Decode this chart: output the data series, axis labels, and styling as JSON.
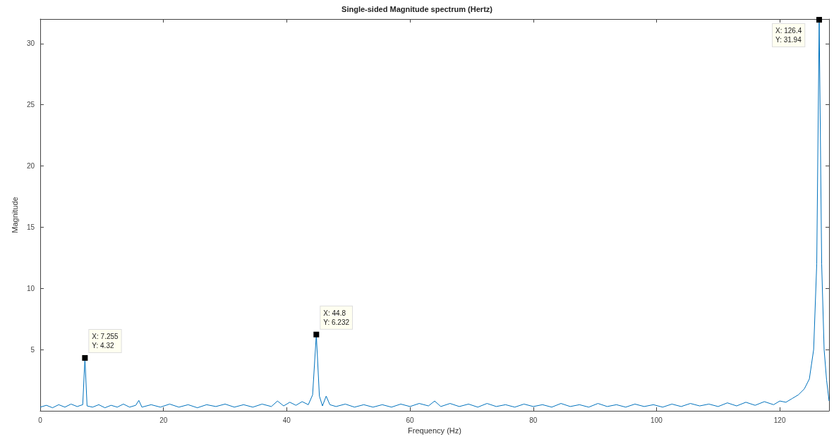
{
  "chart_data": {
    "type": "line",
    "title": "Single-sided Magnitude spectrum (Hertz)",
    "xlabel": "Frequency (Hz)",
    "ylabel": "Magnitude",
    "x": [
      0,
      1,
      2,
      3,
      4,
      5,
      6,
      6.9,
      7.255,
      7.6,
      8.5,
      9.5,
      10.5,
      11.5,
      12.5,
      13.5,
      14.5,
      15.5,
      16,
      16.5,
      18,
      19.5,
      21,
      22.5,
      24,
      25.5,
      27,
      28.5,
      30,
      31.5,
      33,
      34.5,
      36,
      37.5,
      38.5,
      39.5,
      40.5,
      41.5,
      42.5,
      43.5,
      44.2,
      44.8,
      45.3,
      45.8,
      46.4,
      47,
      48,
      49.5,
      51,
      52.5,
      54,
      55.5,
      57,
      58.5,
      60,
      61.5,
      63,
      64,
      65,
      66.5,
      68,
      69.5,
      71,
      72.5,
      74,
      75.5,
      77,
      78.5,
      80,
      81.5,
      83,
      84.5,
      86,
      87.5,
      89,
      90.5,
      92,
      93.5,
      95,
      96.5,
      98,
      99.5,
      101,
      102.5,
      104,
      105.5,
      107,
      108.5,
      110,
      111.5,
      113,
      114.5,
      116,
      117.5,
      119,
      120,
      121,
      122,
      123,
      124,
      124.8,
      125.5,
      126,
      126.4,
      126.8,
      127.2,
      127.6,
      128
    ],
    "series": [
      {
        "color": "#0072bd",
        "values": [
          0.3,
          0.45,
          0.25,
          0.5,
          0.3,
          0.55,
          0.35,
          0.5,
          4.32,
          0.4,
          0.3,
          0.5,
          0.25,
          0.45,
          0.3,
          0.55,
          0.3,
          0.45,
          0.85,
          0.3,
          0.5,
          0.3,
          0.55,
          0.3,
          0.5,
          0.25,
          0.5,
          0.35,
          0.55,
          0.3,
          0.5,
          0.3,
          0.55,
          0.35,
          0.8,
          0.4,
          0.7,
          0.45,
          0.75,
          0.5,
          1.3,
          6.232,
          1.2,
          0.4,
          1.2,
          0.5,
          0.35,
          0.55,
          0.3,
          0.5,
          0.3,
          0.5,
          0.3,
          0.55,
          0.35,
          0.6,
          0.4,
          0.8,
          0.35,
          0.6,
          0.35,
          0.55,
          0.3,
          0.6,
          0.35,
          0.5,
          0.3,
          0.55,
          0.35,
          0.5,
          0.3,
          0.6,
          0.35,
          0.5,
          0.3,
          0.6,
          0.35,
          0.5,
          0.3,
          0.55,
          0.35,
          0.5,
          0.3,
          0.55,
          0.35,
          0.6,
          0.4,
          0.55,
          0.35,
          0.65,
          0.4,
          0.7,
          0.45,
          0.75,
          0.5,
          0.8,
          0.7,
          1.0,
          1.3,
          1.8,
          2.6,
          5,
          12,
          31.94,
          12,
          5,
          2.5,
          0.8
        ]
      }
    ],
    "xlim": [
      0,
      128
    ],
    "xticks": [
      0,
      20,
      40,
      60,
      80,
      100,
      120
    ],
    "ylim": [
      0,
      32
    ],
    "yticks": [
      5,
      10,
      15,
      20,
      25,
      30
    ],
    "grid": false,
    "marker": "none",
    "line_style": "solid",
    "annotations": [
      {
        "text": "X: 7.255\nY: 4.32",
        "x": 7.255,
        "y": 4.32
      },
      {
        "text": "X: 44.8\nY: 6.232",
        "x": 44.8,
        "y": 6.232
      },
      {
        "text": "X: 126.4\nY: 31.94",
        "x": 126.4,
        "y": 31.94
      }
    ]
  }
}
